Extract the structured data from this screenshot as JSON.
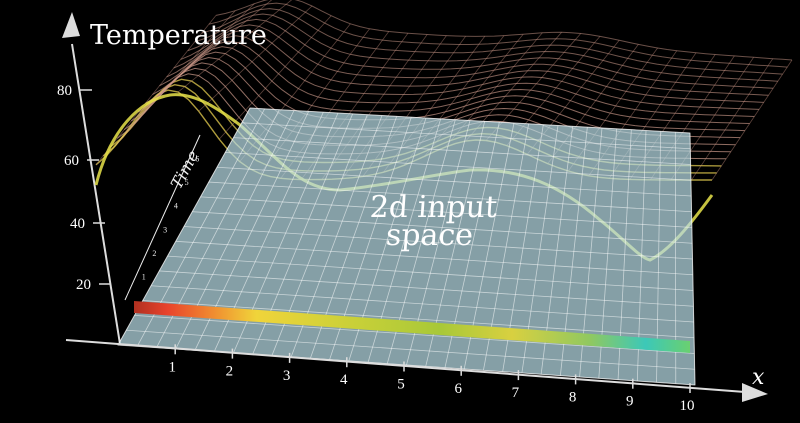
{
  "labels": {
    "temperature_axis": "Temperature",
    "time_axis": "Time",
    "x_axis": "x",
    "plane_line1": "2d input",
    "plane_line2": "space"
  },
  "temperature_ticks": [
    "20",
    "40",
    "60",
    "80"
  ],
  "x_ticks": [
    "1",
    "2",
    "3",
    "4",
    "5",
    "6",
    "7",
    "8",
    "9",
    "10"
  ],
  "time_ticks": [
    "1",
    "2",
    "3",
    "4",
    "5",
    "6"
  ],
  "colors": {
    "background": "#000000",
    "plane": "#b8dde6",
    "surface_lines": "#d4b08a",
    "curve": "#e8e34a",
    "strip_hot": "#e8432c",
    "strip_warm": "#f0d43a",
    "strip_mid": "#a8c838",
    "strip_cool": "#3cc8b8"
  }
}
